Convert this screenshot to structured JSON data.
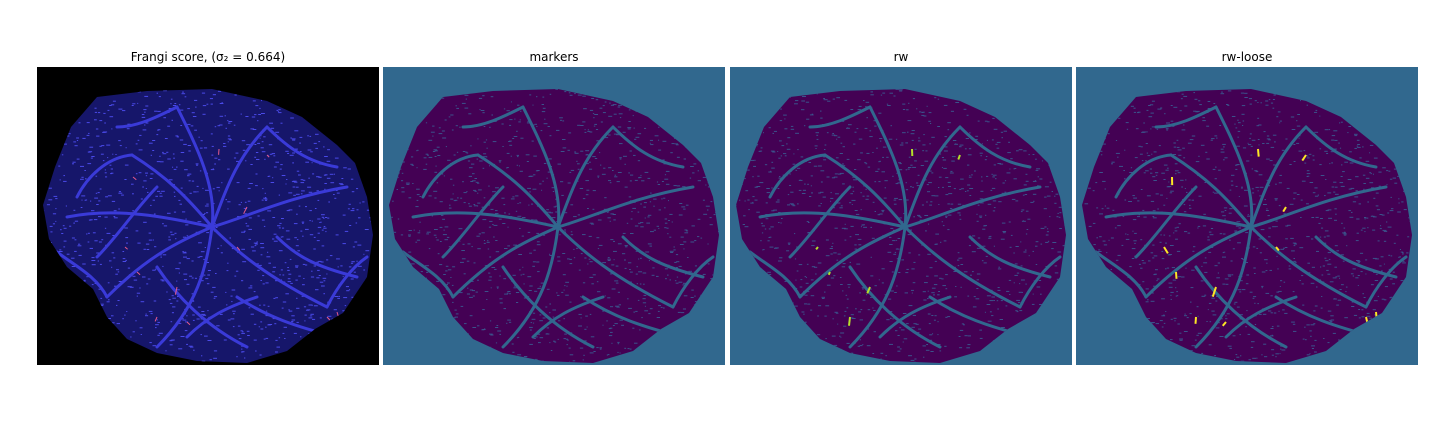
{
  "panels": [
    {
      "title": "Frangi score, (σ₂ = 0.664)",
      "background": "#000000",
      "fill": "#16166a",
      "edge": "#3a3ad8",
      "speckle": "#4a4ae8",
      "highlight": "#e85a8a"
    },
    {
      "title": "markers",
      "background": "#31688e",
      "fill": "#440154",
      "edge": "#31688e",
      "speckle": "#3b528b",
      "highlight": ""
    },
    {
      "title": "rw",
      "background": "#31688e",
      "fill": "#440154",
      "edge": "#31688e",
      "speckle": "#3b528b",
      "highlight": "#b5de2b"
    },
    {
      "title": "rw-loose",
      "background": "#31688e",
      "fill": "#440154",
      "edge": "#31688e",
      "speckle": "#3b528b",
      "highlight": "#fde725"
    }
  ]
}
